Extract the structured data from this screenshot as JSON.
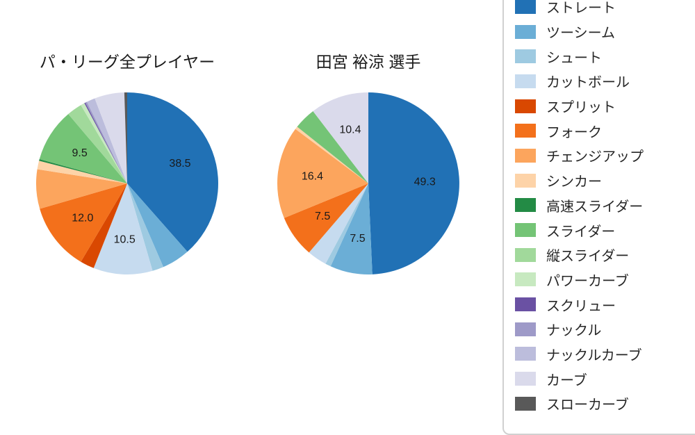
{
  "page": {
    "background": "#ffffff"
  },
  "chart_data": [
    {
      "type": "pie",
      "title": "パ・リーグ全プレイヤー",
      "unit": "percent",
      "start_angle_deg_from_top": 0,
      "direction": "clockwise",
      "label_min_pct": 7.5,
      "visible_value_labels": [
        38.5,
        10.5,
        12.0,
        9.5
      ],
      "series": [
        {
          "name": "ストレート",
          "value": 38.5
        },
        {
          "name": "ツーシーム",
          "value": 5.0
        },
        {
          "name": "シュート",
          "value": 2.0
        },
        {
          "name": "カットボール",
          "value": 10.5
        },
        {
          "name": "スプリット",
          "value": 2.5
        },
        {
          "name": "フォーク",
          "value": 12.0
        },
        {
          "name": "チェンジアップ",
          "value": 7.0
        },
        {
          "name": "シンカー",
          "value": 1.5
        },
        {
          "name": "高速スライダー",
          "value": 0.3
        },
        {
          "name": "スライダー",
          "value": 9.5
        },
        {
          "name": "縦スライダー",
          "value": 2.7
        },
        {
          "name": "パワーカーブ",
          "value": 0.7
        },
        {
          "name": "スクリュー",
          "value": 0.2
        },
        {
          "name": "ナックル",
          "value": 0.3
        },
        {
          "name": "ナックルカーブ",
          "value": 1.5
        },
        {
          "name": "カーブ",
          "value": 5.3
        },
        {
          "name": "スローカーブ",
          "value": 0.5
        }
      ]
    },
    {
      "type": "pie",
      "title": "田宮 裕涼  選手",
      "unit": "percent",
      "start_angle_deg_from_top": 0,
      "direction": "clockwise",
      "label_min_pct": 7.5,
      "visible_value_labels": [
        49.3,
        7.5,
        7.5,
        16.4,
        10.4
      ],
      "series": [
        {
          "name": "ストレート",
          "value": 49.3
        },
        {
          "name": "ツーシーム",
          "value": 7.5
        },
        {
          "name": "シュート",
          "value": 1.0
        },
        {
          "name": "カットボール",
          "value": 3.5
        },
        {
          "name": "スプリット",
          "value": 0
        },
        {
          "name": "フォーク",
          "value": 7.5
        },
        {
          "name": "チェンジアップ",
          "value": 16.4
        },
        {
          "name": "シンカー",
          "value": 0.5
        },
        {
          "name": "高速スライダー",
          "value": 0
        },
        {
          "name": "スライダー",
          "value": 3.9
        },
        {
          "name": "縦スライダー",
          "value": 0
        },
        {
          "name": "パワーカーブ",
          "value": 0
        },
        {
          "name": "スクリュー",
          "value": 0
        },
        {
          "name": "ナックル",
          "value": 0
        },
        {
          "name": "ナックルカーブ",
          "value": 0
        },
        {
          "name": "カーブ",
          "value": 10.4
        },
        {
          "name": "スローカーブ",
          "value": 0
        }
      ]
    }
  ],
  "legend": {
    "position": "right",
    "border_color": "#d0d0d0",
    "items": [
      {
        "label": "ストレート",
        "color": "#2171b5"
      },
      {
        "label": "ツーシーム",
        "color": "#6baed6"
      },
      {
        "label": "シュート",
        "color": "#9ecae1"
      },
      {
        "label": "カットボール",
        "color": "#c6dbef"
      },
      {
        "label": "スプリット",
        "color": "#d94801"
      },
      {
        "label": "フォーク",
        "color": "#f3701b"
      },
      {
        "label": "チェンジアップ",
        "color": "#fca55d"
      },
      {
        "label": "シンカー",
        "color": "#fdd3a8"
      },
      {
        "label": "高速スライダー",
        "color": "#238b45"
      },
      {
        "label": "スライダー",
        "color": "#74c476"
      },
      {
        "label": "縦スライダー",
        "color": "#a1d99b"
      },
      {
        "label": "パワーカーブ",
        "color": "#c7e9c0"
      },
      {
        "label": "スクリュー",
        "color": "#6a51a3"
      },
      {
        "label": "ナックル",
        "color": "#9e9ac8"
      },
      {
        "label": "ナックルカーブ",
        "color": "#bcbddc"
      },
      {
        "label": "カーブ",
        "color": "#dadaeb"
      },
      {
        "label": "スローカーブ",
        "color": "#595959"
      }
    ]
  }
}
